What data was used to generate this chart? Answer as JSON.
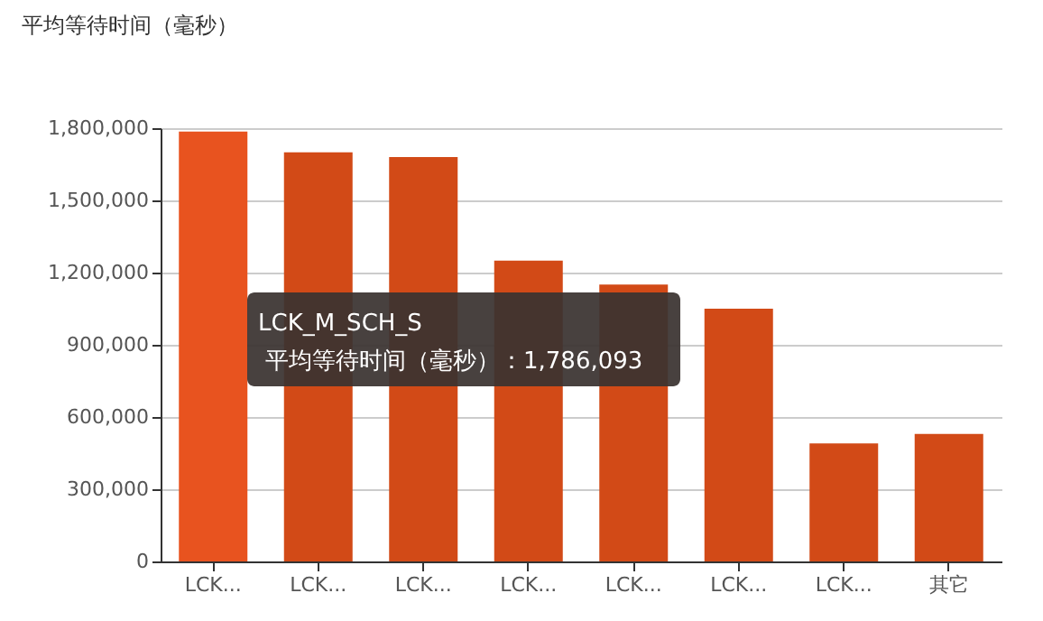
{
  "chart_data": {
    "type": "bar",
    "title": "平均等待时间（毫秒）",
    "categories": [
      "LCK...",
      "LCK...",
      "LCK...",
      "LCK...",
      "LCK...",
      "LCK...",
      "LCK...",
      "其它"
    ],
    "values": [
      1786093,
      1700000,
      1680000,
      1250000,
      1150000,
      1050000,
      490000,
      530000
    ],
    "colors": [
      "#e8531f",
      "#d24a17",
      "#d24a17",
      "#d24a17",
      "#d24a17",
      "#d24a17",
      "#d24a17",
      "#d24a17"
    ],
    "ylim": [
      0,
      1800000
    ],
    "yticks": [
      0,
      {
        "value": 300000,
        "label": "300,000"
      },
      {
        "value": 600000,
        "label": "600,000"
      },
      {
        "value": 900000,
        "label": "900,000"
      },
      {
        "value": 1200000,
        "label": "1,200,000"
      },
      {
        "value": 1500000,
        "label": "1,500,000"
      },
      {
        "value": 1800000,
        "label": "1,800,000"
      }
    ],
    "grid": "y",
    "annotations": [
      "LCK_M_SCH_S",
      "平均等待时间（毫秒）：1,786,093"
    ]
  }
}
